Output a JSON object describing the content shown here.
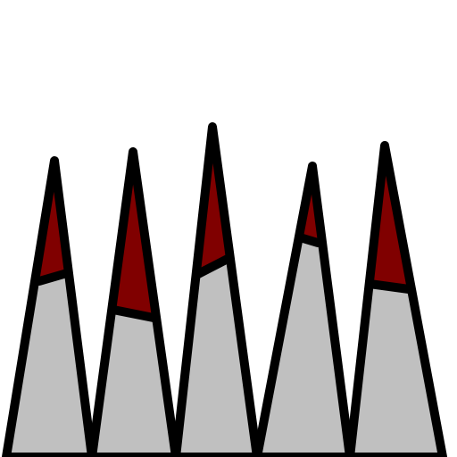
{
  "colors": {
    "background": "#ffffff",
    "body": "#c0c0c0",
    "tip": "#800000",
    "outline": "#000000"
  },
  "spikes": [
    {
      "name": "spike-1"
    },
    {
      "name": "spike-2"
    },
    {
      "name": "spike-3"
    },
    {
      "name": "spike-4"
    },
    {
      "name": "spike-5"
    }
  ]
}
